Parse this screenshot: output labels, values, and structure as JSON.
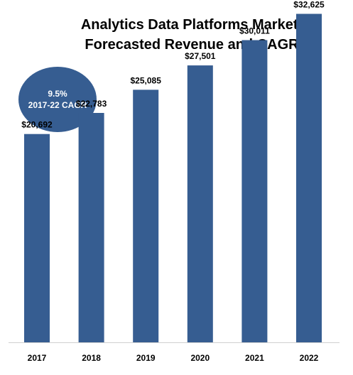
{
  "chart_data": {
    "type": "bar",
    "title": "Analytics Data Platforms Market:",
    "subtitle": "Forecasted Revenue and CAGR",
    "categories": [
      "2017",
      "2018",
      "2019",
      "2020",
      "2021",
      "2022"
    ],
    "values": [
      20692,
      22783,
      25085,
      27501,
      30011,
      32625
    ],
    "data_labels": [
      "$20,692",
      "$22,783",
      "$25,085",
      "$27,501",
      "$30,011",
      "$32,625"
    ],
    "ylim": [
      0,
      34000
    ],
    "grid": false,
    "bar_color": "#365d91",
    "annotation": {
      "value": "9.5%",
      "label": "2017-22  CAGR"
    }
  }
}
